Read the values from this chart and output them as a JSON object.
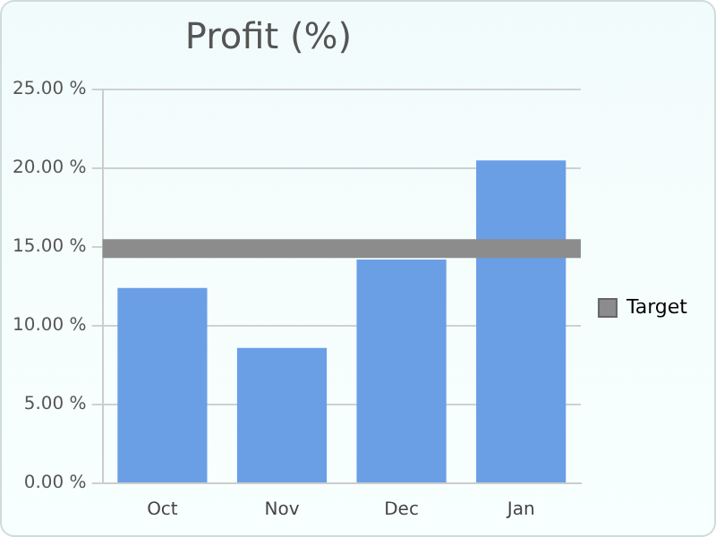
{
  "chart_data": {
    "type": "bar",
    "title": "Profit (%)",
    "categories": [
      "Oct",
      "Nov",
      "Dec",
      "Jan"
    ],
    "values": [
      12.4,
      8.6,
      14.2,
      20.5
    ],
    "color": "#6a9fe6",
    "ylim": [
      0,
      25
    ],
    "yticks": [
      {
        "value": 0,
        "label": "0.00 %"
      },
      {
        "value": 5,
        "label": "5.00 %"
      },
      {
        "value": 10,
        "label": "10.00 %"
      },
      {
        "value": 15,
        "label": "15.00 %"
      },
      {
        "value": 20,
        "label": "20.00 %"
      },
      {
        "value": 25,
        "label": "25.00 %"
      }
    ],
    "grid": "y",
    "legend": "right",
    "bands": [
      {
        "axis": "y",
        "from": 14.3,
        "to": 15.5,
        "label": "Target",
        "color": "#8c8c8c"
      }
    ]
  }
}
